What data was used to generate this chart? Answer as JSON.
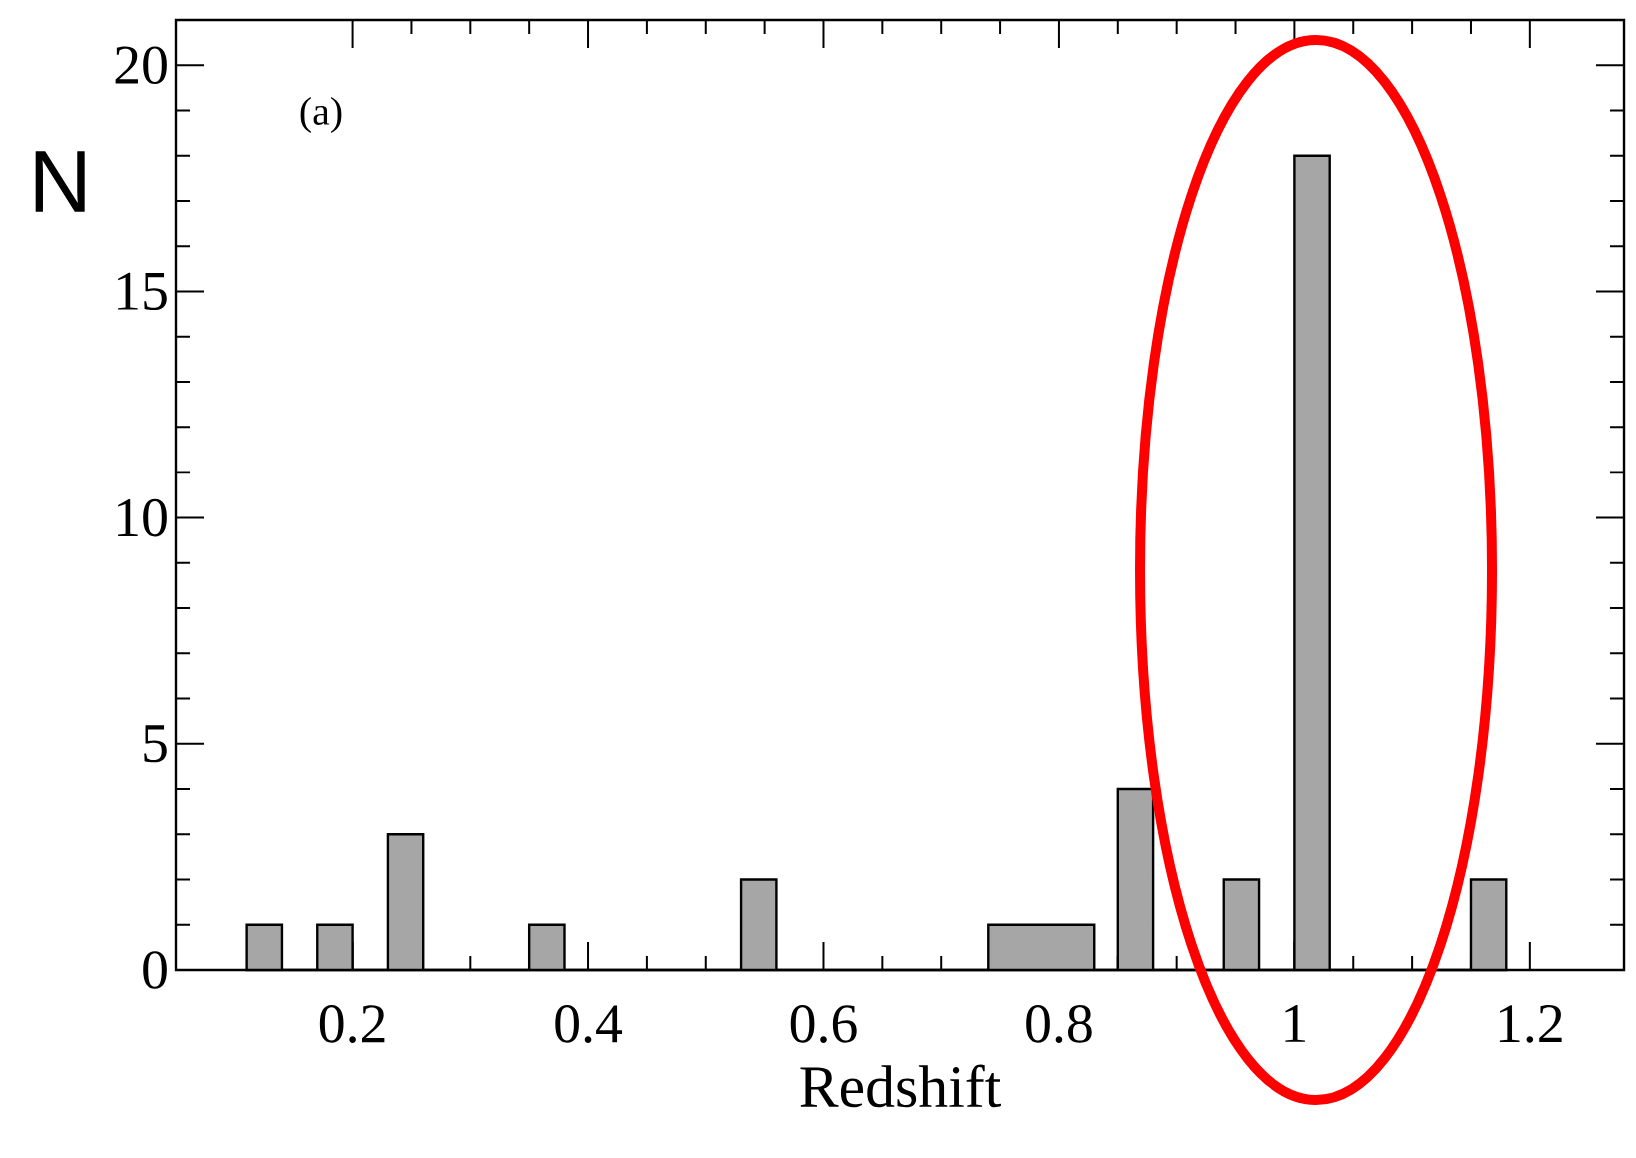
{
  "chart_data": {
    "type": "histogram",
    "xlabel": "Redshift",
    "ylabel": "N",
    "annotations": [
      "(a)"
    ],
    "bins": [
      0.11,
      0.14,
      0.17,
      0.2,
      0.23,
      0.26,
      0.35,
      0.38,
      0.53,
      0.56,
      0.74,
      0.77,
      0.8,
      0.83,
      0.85,
      0.88,
      0.94,
      0.97,
      1.0,
      1.03,
      1.15,
      1.18
    ],
    "values": [
      1,
      0,
      1,
      0,
      3,
      0,
      1,
      0,
      2,
      0,
      1,
      1,
      1,
      0,
      4,
      0,
      2,
      0,
      18,
      0,
      2
    ],
    "color": "#a6a6a6",
    "xlim": [
      0.05,
      1.28
    ],
    "ylim": [
      0,
      21
    ],
    "xticks": [
      0.2,
      0.4,
      0.6,
      0.8,
      1,
      1.2
    ],
    "yticks": [
      0,
      5,
      10,
      15,
      20
    ]
  }
}
